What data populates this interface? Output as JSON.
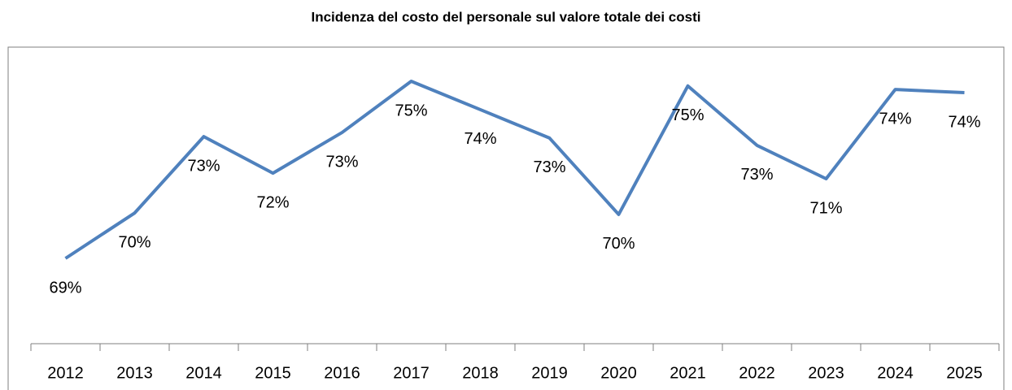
{
  "chart_data": {
    "type": "line",
    "title": "Incidenza del costo del personale sul valore totale dei costi",
    "categories": [
      "2012",
      "2013",
      "2014",
      "2015",
      "2016",
      "2017",
      "2018",
      "2019",
      "2020",
      "2021",
      "2022",
      "2023",
      "2024",
      "2025"
    ],
    "series": [
      {
        "color": "#4f81bd",
        "values": [
          68.67,
          70.22,
          72.83,
          71.58,
          72.97,
          74.72,
          73.75,
          72.78,
          70.17,
          74.56,
          72.53,
          71.39,
          74.44,
          74.33
        ],
        "value_labels": [
          "69%",
          "70%",
          "73%",
          "72%",
          "73%",
          "75%",
          "74%",
          "73%",
          "70%",
          "75%",
          "73%",
          "71%",
          "74%",
          "74%"
        ]
      }
    ]
  }
}
